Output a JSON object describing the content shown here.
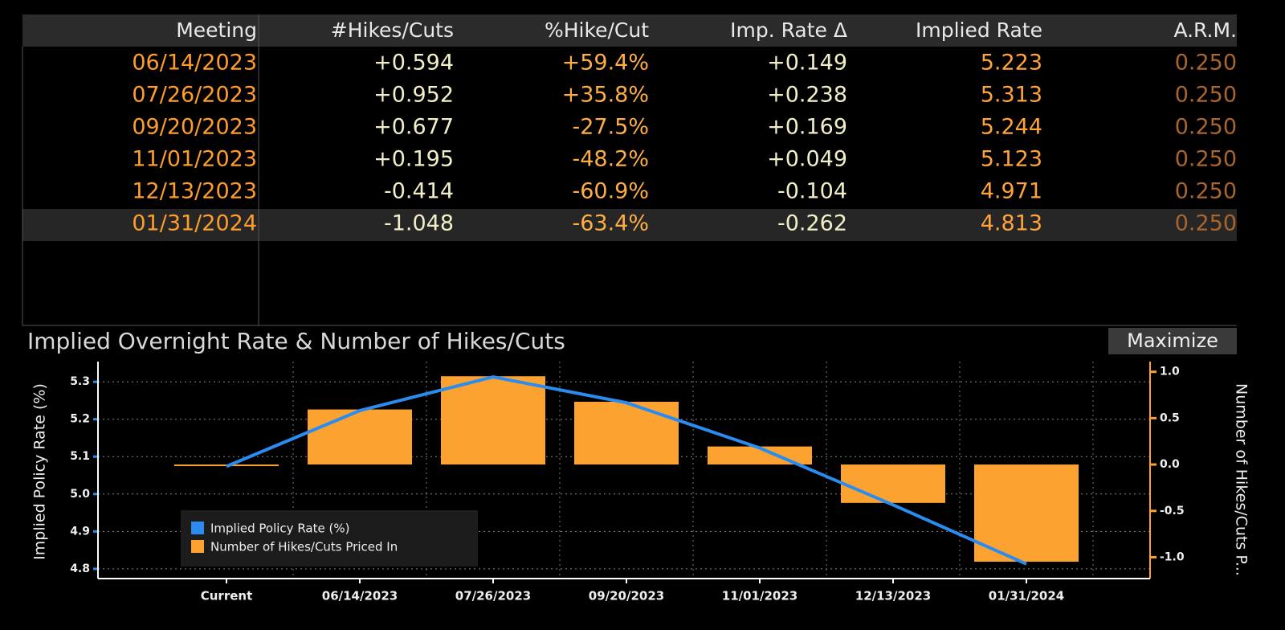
{
  "table": {
    "columns": [
      "Meeting",
      "#Hikes/Cuts",
      "%Hike/Cut",
      "Imp. Rate Δ",
      "Implied Rate",
      "A.R.M."
    ],
    "rows": [
      [
        "06/14/2023",
        "+0.594",
        "+59.4%",
        "+0.149",
        "5.223",
        "0.250"
      ],
      [
        "07/26/2023",
        "+0.952",
        "+35.8%",
        "+0.238",
        "5.313",
        "0.250"
      ],
      [
        "09/20/2023",
        "+0.677",
        "-27.5%",
        "+0.169",
        "5.244",
        "0.250"
      ],
      [
        "11/01/2023",
        "+0.195",
        "-48.2%",
        "+0.049",
        "5.123",
        "0.250"
      ],
      [
        "12/13/2023",
        "-0.414",
        "-60.9%",
        "-0.104",
        "4.971",
        "0.250"
      ],
      [
        "01/31/2024",
        "-1.048",
        "-63.4%",
        "-0.262",
        "4.813",
        "0.250"
      ]
    ]
  },
  "button": "Maximize",
  "chart_data": {
    "type": "combo",
    "title": "Implied Overnight Rate & Number of Hikes/Cuts",
    "y_label": "Implied Policy Rate (%)",
    "y2_label": "Number of Hikes/Cuts P...",
    "categories": [
      "Current",
      "06/14/2023",
      "07/26/2023",
      "09/20/2023",
      "11/01/2023",
      "12/13/2023",
      "01/31/2024"
    ],
    "series": [
      {
        "name": "Implied Policy Rate (%)",
        "type": "line",
        "color": "#2b8cf0",
        "values": [
          5.074,
          5.223,
          5.313,
          5.244,
          5.123,
          4.971,
          4.813
        ]
      },
      {
        "name": "Number of Hikes/Cuts Priced In",
        "type": "bar",
        "axis": "y2",
        "color": "#fba231",
        "values": [
          0,
          0.594,
          0.952,
          0.677,
          0.195,
          -0.414,
          -1.048
        ]
      }
    ],
    "ylim": [
      4.774,
      5.354
    ],
    "yticks": [
      4.8,
      4.9,
      {
        "value": 5,
        "label": "5.0"
      },
      5.1,
      5.2,
      5.3
    ],
    "y2lim": [
      -1.23,
      1.11
    ],
    "y2ticks": [
      {
        "value": -1,
        "label": "-1.0"
      },
      -0.5,
      {
        "value": 0,
        "label": "0.0"
      },
      0.5,
      {
        "value": 1,
        "label": "1.0"
      }
    ],
    "grid": true,
    "legend": "lower-left"
  }
}
